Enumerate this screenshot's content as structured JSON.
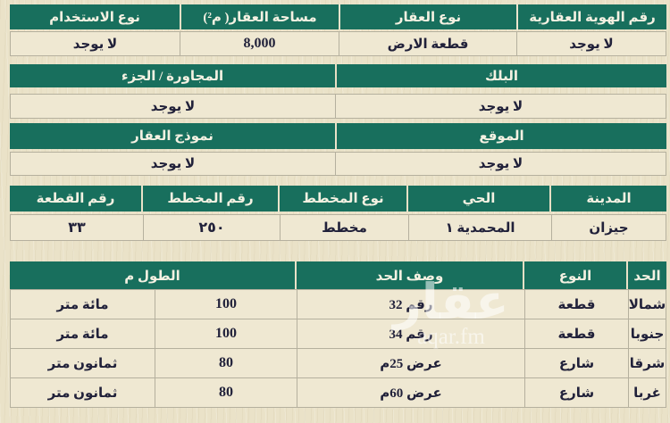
{
  "colors": {
    "header_green": "#186f5d",
    "page_beige": "#eae2c8",
    "cell_beige": "#efe8d2",
    "text_dark": "#21213a",
    "header_text": "#f4f1e2"
  },
  "watermark": {
    "name": "عقار",
    "site": "aqar.fm"
  },
  "summary": {
    "row1_headers": [
      "رقم الهوية العقارية",
      "نوع العقار",
      "مساحة العقار( م²)",
      "نوع الاستخدام"
    ],
    "row1_values": [
      "لا يوجد",
      "قطعة الارض",
      "8,000",
      "لا يوجد"
    ],
    "row2_headers": [
      "البلك",
      "المجاورة / الجزء"
    ],
    "row2_values": [
      "لا يوجد",
      "لا يوجد"
    ],
    "row3_headers": [
      "الموقع",
      "نموذج العقار"
    ],
    "row3_values": [
      "لا يوجد",
      "لا يوجد"
    ],
    "row4_headers": [
      "المدينة",
      "الحي",
      "نوع المخطط",
      "رقم المخطط",
      "رقم القطعة"
    ],
    "row4_values": [
      "جيزان",
      "المحمدية ١",
      "مخطط",
      "٢٥٠",
      "٣٣"
    ]
  },
  "bounds": {
    "header_boundary": "الحد",
    "header_type": "النوع",
    "header_description": "وصف الحد",
    "header_length": "الطول م",
    "rows": [
      {
        "boundary": "شمالا",
        "type": "قطعة",
        "description": "رقم 32",
        "length_value": "100",
        "length_words": "مائة متر"
      },
      {
        "boundary": "جنوبا",
        "type": "قطعة",
        "description": "رقم 34",
        "length_value": "100",
        "length_words": "مائة متر"
      },
      {
        "boundary": "شرقا",
        "type": "شارع",
        "description": "عرض 25م",
        "length_value": "80",
        "length_words": "ثمانون متر"
      },
      {
        "boundary": "غربا",
        "type": "شارع",
        "description": "عرض 60م",
        "length_value": "80",
        "length_words": "ثمانون متر"
      }
    ]
  }
}
